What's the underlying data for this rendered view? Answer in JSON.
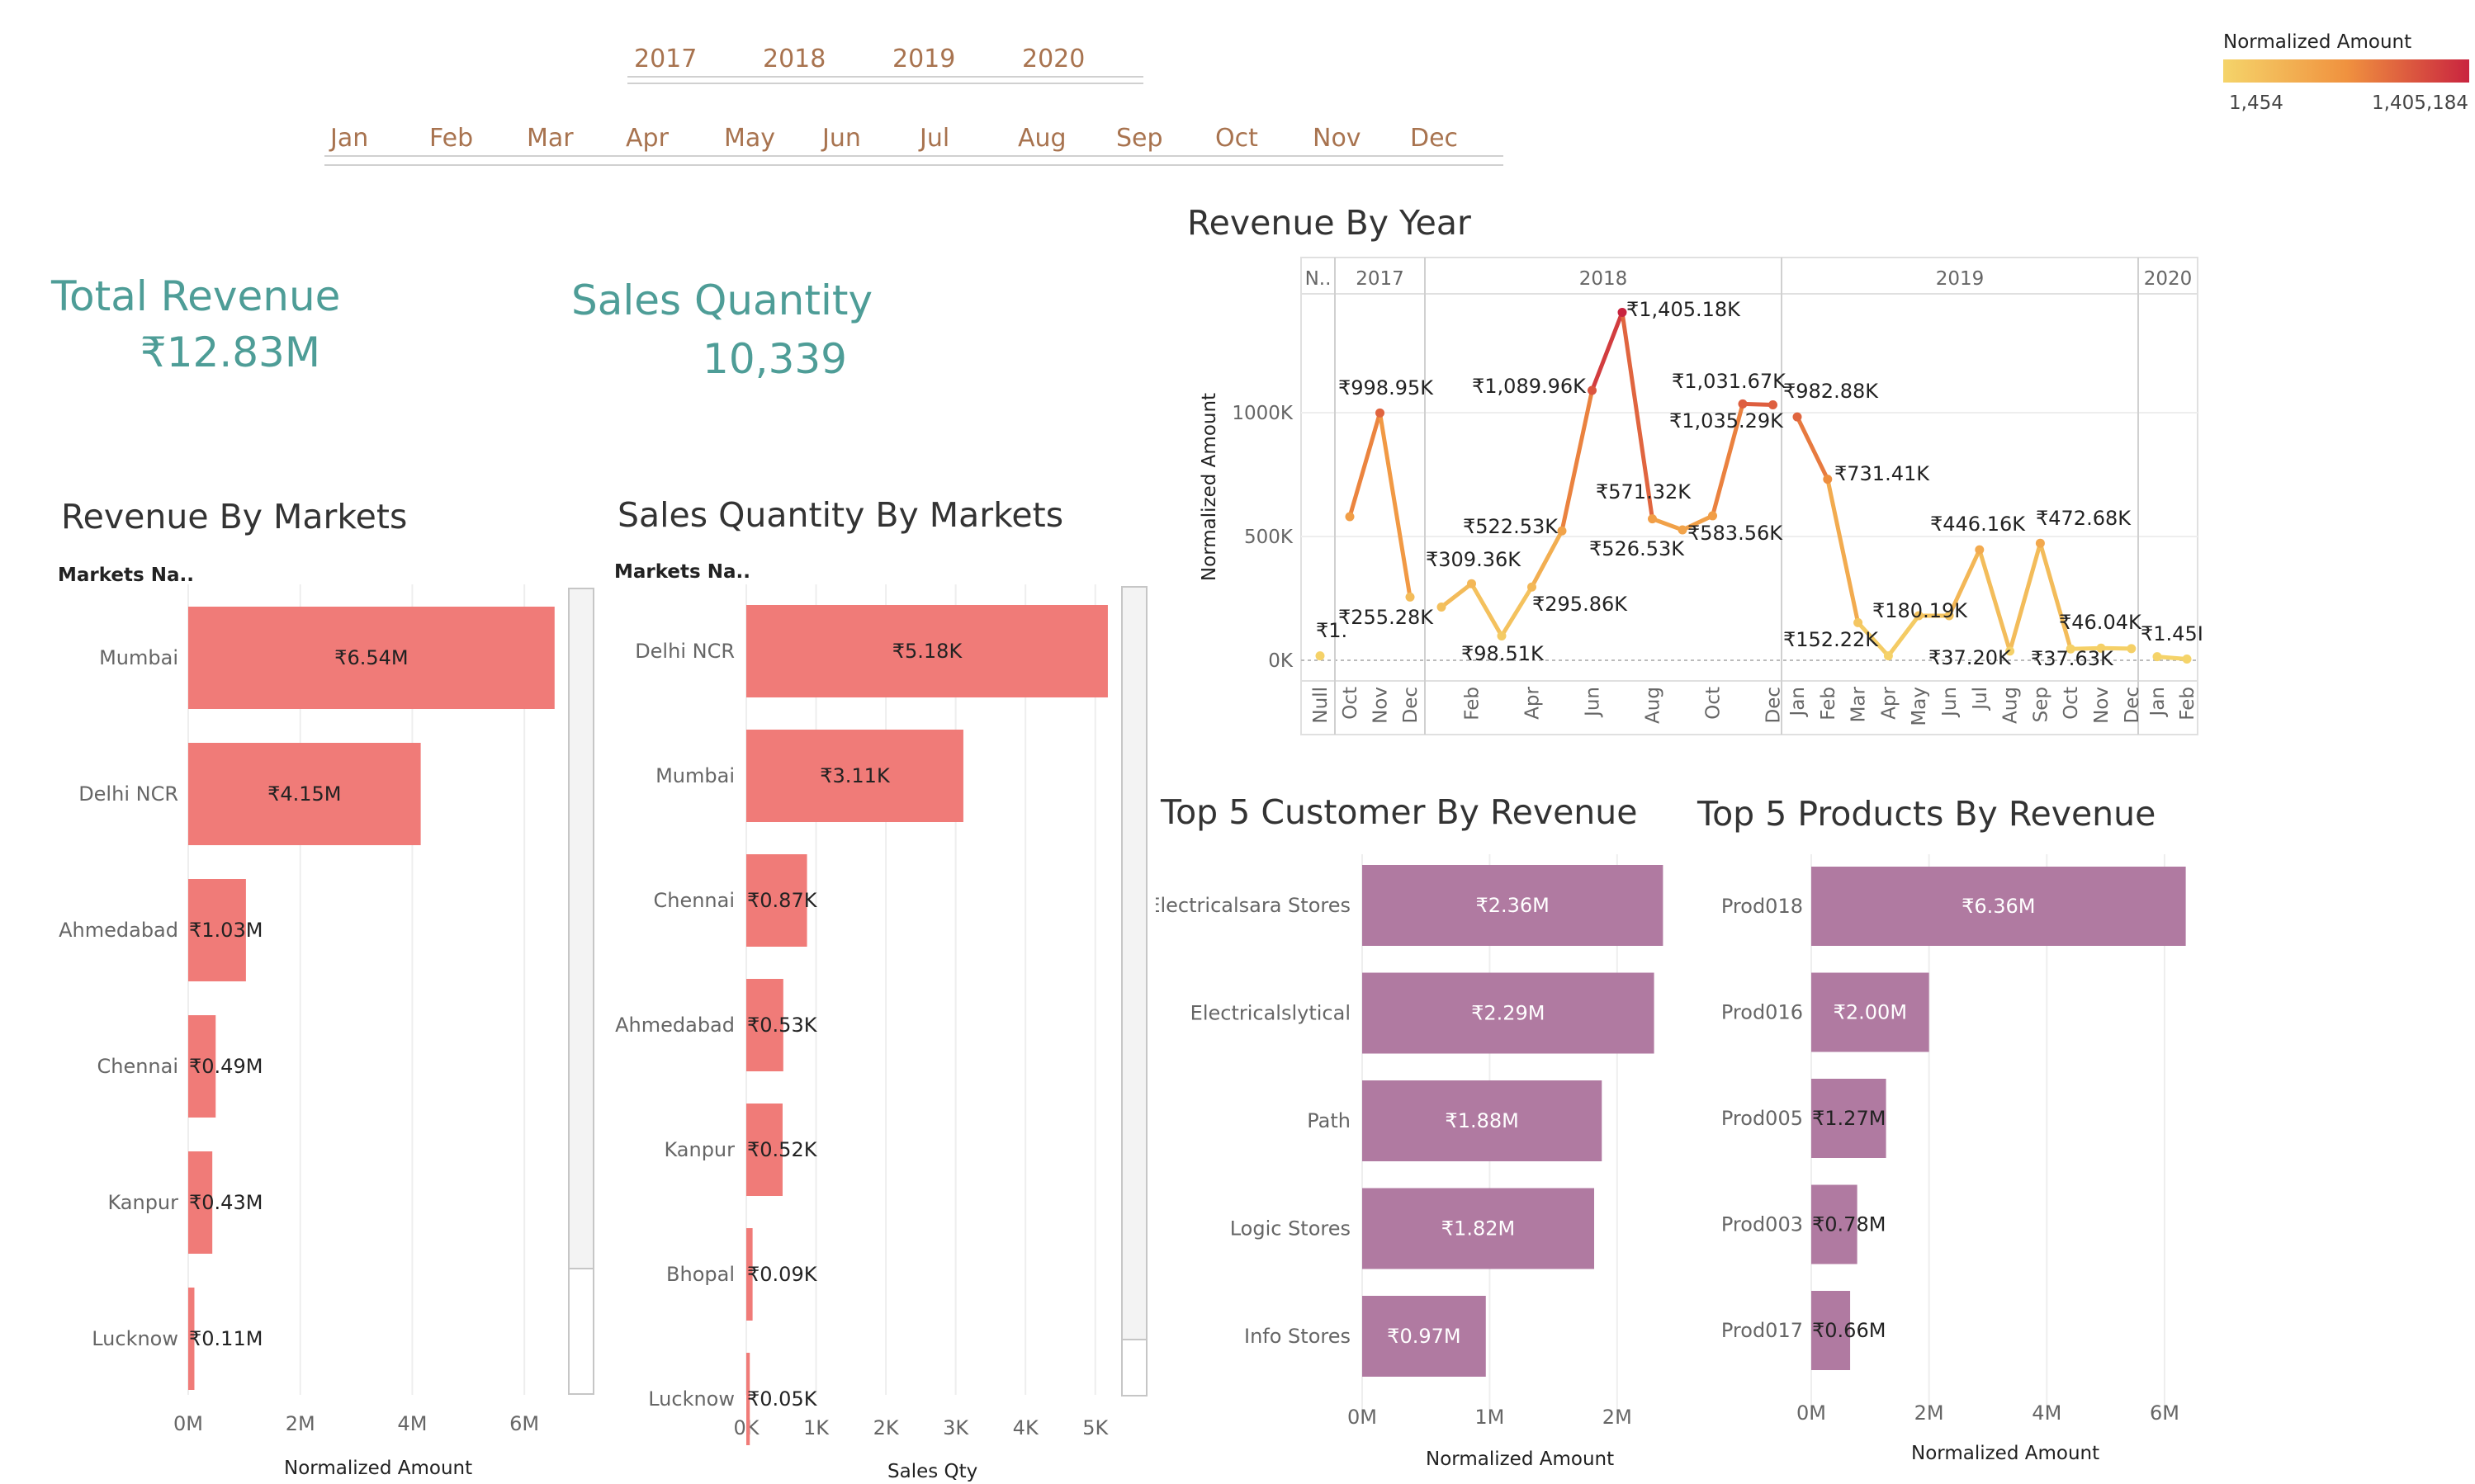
{
  "filters": {
    "years": [
      "2017",
      "2018",
      "2019",
      "2020"
    ],
    "months": [
      "Jan",
      "Feb",
      "Mar",
      "Apr",
      "May",
      "Jun",
      "Jul",
      "Aug",
      "Sep",
      "Oct",
      "Nov",
      "Dec"
    ]
  },
  "legend": {
    "title": "Normalized Amount",
    "min_label": "1,454",
    "max_label": "1,405,184",
    "color_low": "#f5d46a",
    "color_mid": "#f0923f",
    "color_high": "#c9243f"
  },
  "kpis": {
    "total_revenue_label": "Total Revenue",
    "total_revenue_value": "₹12.83M",
    "sales_qty_label": "Sales Quantity",
    "sales_qty_value": "10,339"
  },
  "colors": {
    "market_bar": "#f07b78",
    "top5_bar": "#b07aa1",
    "kpi_text": "#4e9d97",
    "filter_text": "#a8734f"
  },
  "chart_data": [
    {
      "id": "revenue_by_markets",
      "type": "bar",
      "orientation": "horizontal",
      "title": "Revenue By Markets",
      "row_header": "Markets Na..",
      "xlabel": "Normalized Amount",
      "xlim": [
        0,
        7000000
      ],
      "ticks": [
        "0M",
        "2M",
        "4M",
        "6M"
      ],
      "categories": [
        "Mumbai",
        "Delhi NCR",
        "Ahmedabad",
        "Chennai",
        "Kanpur",
        "Lucknow"
      ],
      "values": [
        6540000,
        4150000,
        1030000,
        490000,
        430000,
        110000
      ],
      "labels": [
        "₹6.54M",
        "₹4.15M",
        "₹1.03M",
        "₹0.49M",
        "₹0.43M",
        "₹0.11M"
      ]
    },
    {
      "id": "sales_qty_by_markets",
      "type": "bar",
      "orientation": "horizontal",
      "title": "Sales Quantity By Markets",
      "row_header": "Markets Na..",
      "xlabel": "Sales Qty",
      "xlim": [
        0,
        5500
      ],
      "ticks": [
        "0K",
        "1K",
        "2K",
        "3K",
        "4K",
        "5K"
      ],
      "categories": [
        "Delhi NCR",
        "Mumbai",
        "Chennai",
        "Ahmedabad",
        "Kanpur",
        "Bhopal",
        "Lucknow"
      ],
      "values": [
        5180,
        3110,
        870,
        530,
        520,
        90,
        50
      ],
      "labels": [
        "₹5.18K",
        "₹3.11K",
        "₹0.87K",
        "₹0.53K",
        "₹0.52K",
        "₹0.09K",
        "₹0.05K"
      ]
    },
    {
      "id": "revenue_by_year",
      "type": "line",
      "title": "Revenue By Year",
      "ylabel": "Normalized Amount",
      "ylim": [
        -80000,
        1650000
      ],
      "yticks": [
        "0K",
        "500K",
        "1000K"
      ],
      "panes": [
        {
          "label": "N..",
          "months": [
            "Null"
          ],
          "values": [
            18000
          ]
        },
        {
          "label": "2017",
          "months": [
            "Oct",
            "Nov",
            "Dec"
          ],
          "values": [
            580000,
            998950,
            255280
          ]
        },
        {
          "label": "2018",
          "months": [
            "Jan",
            "Feb",
            "Mar",
            "Apr",
            "May",
            "Jun",
            "Jul",
            "Aug",
            "Sep",
            "Oct",
            "Nov",
            "Dec"
          ],
          "values": [
            215000,
            309360,
            98510,
            295860,
            522530,
            1089960,
            1405180,
            571320,
            526530,
            583560,
            1035290,
            1031670
          ],
          "tick_labels": [
            "",
            "Feb",
            "",
            "Apr",
            "",
            "Jun",
            "",
            "Aug",
            "",
            "Oct",
            "",
            "Dec"
          ]
        },
        {
          "label": "2019",
          "months": [
            "Jan",
            "Feb",
            "Mar",
            "Apr",
            "May",
            "Jun",
            "Jul",
            "Aug",
            "Sep",
            "Oct",
            "Nov",
            "Dec"
          ],
          "values": [
            982880,
            731410,
            152220,
            18000,
            180190,
            180000,
            446160,
            37200,
            472680,
            46040,
            49000,
            47000
          ]
        },
        {
          "label": "2020",
          "months": [
            "Jan",
            "Feb"
          ],
          "values": [
            14500,
            5000
          ]
        }
      ],
      "data_labels": [
        "₹1.",
        "₹998.95K",
        "₹255.28K",
        "₹309.36K",
        "₹98.51K",
        "₹295.86K",
        "₹522.53K",
        "₹1,089.96K",
        "₹1,405.18K",
        "₹571.32K",
        "₹526.53K",
        "₹583.56K",
        "₹1,031.67K",
        "₹1,035.29K",
        "₹982.88K",
        "₹731.41K",
        "₹152.22K",
        "₹180.19K",
        "₹37.20K",
        "₹446.16K",
        "₹37.63K",
        "₹472.68K",
        "₹46.04K",
        "₹1.45I"
      ]
    },
    {
      "id": "top5_customers",
      "type": "bar",
      "orientation": "horizontal",
      "title": "Top 5 Customer By Revenue",
      "xlabel": "Normalized Amount",
      "xlim": [
        0,
        2500000
      ],
      "ticks": [
        "0M",
        "1M",
        "2M"
      ],
      "categories": [
        "Electricalsara Stores",
        "Electricalslytical",
        "Path",
        "Logic Stores",
        "Info Stores"
      ],
      "values": [
        2360000,
        2290000,
        1880000,
        1820000,
        970000
      ],
      "labels": [
        "₹2.36M",
        "₹2.29M",
        "₹1.88M",
        "₹1.82M",
        "₹0.97M"
      ]
    },
    {
      "id": "top5_products",
      "type": "bar",
      "orientation": "horizontal",
      "title": "Top 5 Products By Revenue",
      "xlabel": "Normalized Amount",
      "xlim": [
        0,
        6800000
      ],
      "ticks": [
        "0M",
        "2M",
        "4M",
        "6M"
      ],
      "categories": [
        "Prod018",
        "Prod016",
        "Prod005",
        "Prod003",
        "Prod017"
      ],
      "values": [
        6360000,
        2000000,
        1270000,
        780000,
        660000
      ],
      "labels": [
        "₹6.36M",
        "₹2.00M",
        "₹1.27M",
        "₹0.78M",
        "₹0.66M"
      ]
    }
  ]
}
